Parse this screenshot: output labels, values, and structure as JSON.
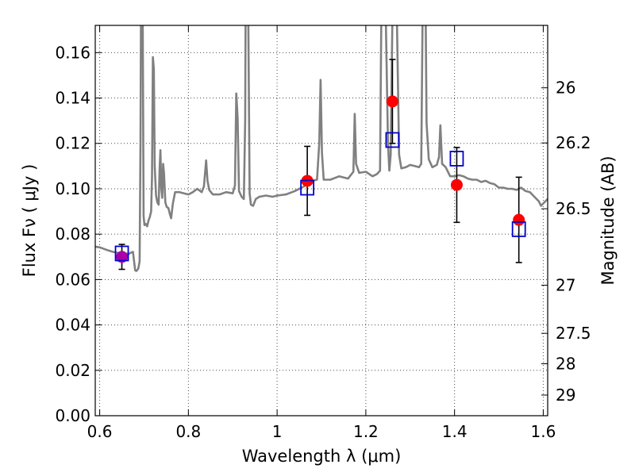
{
  "chart_data": {
    "type": "scatter",
    "xlabel": "Wavelength  λ (μm)",
    "ylabel": "Flux  Fν  ( μJy )",
    "ylabel_right": "Magnitude (AB)",
    "xlim": [
      0.59,
      1.61
    ],
    "ylim": [
      0.0,
      0.172
    ],
    "grid": true,
    "colors": {
      "spectrum": "#808080",
      "observed": "#ff0000",
      "model": "#0000cc",
      "overlap": "#aa00aa",
      "errorbar": "#000000"
    },
    "x_ticks": [
      {
        "value": 0.6,
        "label": "0.6"
      },
      {
        "value": 0.8,
        "label": "0.8"
      },
      {
        "value": 1.0,
        "label": "1"
      },
      {
        "value": 1.2,
        "label": "1.2"
      },
      {
        "value": 1.4,
        "label": "1.4"
      },
      {
        "value": 1.6,
        "label": "1.6"
      }
    ],
    "y_ticks": [
      {
        "value": 0.0,
        "label": "0.00"
      },
      {
        "value": 0.02,
        "label": "0.02"
      },
      {
        "value": 0.04,
        "label": "0.04"
      },
      {
        "value": 0.06,
        "label": "0.06"
      },
      {
        "value": 0.08,
        "label": "0.08"
      },
      {
        "value": 0.1,
        "label": "0.10"
      },
      {
        "value": 0.12,
        "label": "0.12"
      },
      {
        "value": 0.14,
        "label": "0.14"
      },
      {
        "value": 0.16,
        "label": "0.16"
      }
    ],
    "magnitude_ticks": [
      {
        "flux": 0.1445,
        "label": "26"
      },
      {
        "flux": 0.1202,
        "label": "26.2"
      },
      {
        "flux": 0.0912,
        "label": "26.5"
      },
      {
        "flux": 0.0575,
        "label": "27"
      },
      {
        "flux": 0.0363,
        "label": "27.5"
      },
      {
        "flux": 0.0229,
        "label": "28"
      },
      {
        "flux": 0.0091,
        "label": "29"
      }
    ],
    "series": [
      {
        "kind": "observed",
        "points": [
          {
            "x": 0.65,
            "y": 0.07,
            "err": 0.0055
          },
          {
            "x": 1.068,
            "y": 0.1035,
            "err": 0.0152
          },
          {
            "x": 1.26,
            "y": 0.1385,
            "err": 0.0185
          },
          {
            "x": 1.405,
            "y": 0.1017,
            "err": 0.0165
          },
          {
            "x": 1.545,
            "y": 0.0863,
            "err": 0.0188
          }
        ]
      },
      {
        "kind": "model",
        "points": [
          {
            "x": 0.65,
            "y": 0.0715
          },
          {
            "x": 1.068,
            "y": 0.1005
          },
          {
            "x": 1.26,
            "y": 0.1215
          },
          {
            "x": 1.405,
            "y": 0.1133
          },
          {
            "x": 1.545,
            "y": 0.0822
          }
        ]
      }
    ],
    "spectrum": [
      [
        0.59,
        0.0745
      ],
      [
        0.6,
        0.0742
      ],
      [
        0.61,
        0.0735
      ],
      [
        0.62,
        0.0728
      ],
      [
        0.63,
        0.0722
      ],
      [
        0.64,
        0.0718
      ],
      [
        0.645,
        0.0705
      ],
      [
        0.65,
        0.0702
      ],
      [
        0.655,
        0.0708
      ],
      [
        0.66,
        0.0715
      ],
      [
        0.665,
        0.0712
      ],
      [
        0.67,
        0.0718
      ],
      [
        0.675,
        0.0722
      ],
      [
        0.68,
        0.064
      ],
      [
        0.683,
        0.0638
      ],
      [
        0.687,
        0.0648
      ],
      [
        0.69,
        0.068
      ],
      [
        0.692,
        0.12
      ],
      [
        0.693,
        0.176
      ],
      [
        0.697,
        0.176
      ],
      [
        0.699,
        0.088
      ],
      [
        0.701,
        0.084
      ],
      [
        0.704,
        0.0845
      ],
      [
        0.707,
        0.0835
      ],
      [
        0.71,
        0.086
      ],
      [
        0.713,
        0.0875
      ],
      [
        0.716,
        0.09
      ],
      [
        0.718,
        0.105
      ],
      [
        0.72,
        0.158
      ],
      [
        0.722,
        0.153
      ],
      [
        0.724,
        0.11
      ],
      [
        0.727,
        0.097
      ],
      [
        0.73,
        0.094
      ],
      [
        0.733,
        0.093
      ],
      [
        0.735,
        0.108
      ],
      [
        0.737,
        0.117
      ],
      [
        0.739,
        0.1
      ],
      [
        0.741,
        0.096
      ],
      [
        0.743,
        0.111
      ],
      [
        0.745,
        0.107
      ],
      [
        0.748,
        0.094
      ],
      [
        0.751,
        0.092
      ],
      [
        0.755,
        0.0915
      ],
      [
        0.758,
        0.089
      ],
      [
        0.761,
        0.087
      ],
      [
        0.765,
        0.0935
      ],
      [
        0.77,
        0.0985
      ],
      [
        0.78,
        0.0985
      ],
      [
        0.79,
        0.098
      ],
      [
        0.8,
        0.0975
      ],
      [
        0.81,
        0.0985
      ],
      [
        0.82,
        0.1
      ],
      [
        0.83,
        0.0985
      ],
      [
        0.835,
        0.101
      ],
      [
        0.84,
        0.1125
      ],
      [
        0.843,
        0.1035
      ],
      [
        0.847,
        0.0995
      ],
      [
        0.855,
        0.0975
      ],
      [
        0.87,
        0.0975
      ],
      [
        0.885,
        0.0985
      ],
      [
        0.9,
        0.098
      ],
      [
        0.905,
        0.1015
      ],
      [
        0.908,
        0.142
      ],
      [
        0.911,
        0.131
      ],
      [
        0.914,
        0.099
      ],
      [
        0.92,
        0.0965
      ],
      [
        0.925,
        0.0955
      ],
      [
        0.928,
        0.13
      ],
      [
        0.929,
        0.176
      ],
      [
        0.935,
        0.176
      ],
      [
        0.938,
        0.098
      ],
      [
        0.941,
        0.093
      ],
      [
        0.946,
        0.0925
      ],
      [
        0.952,
        0.0955
      ],
      [
        0.96,
        0.0965
      ],
      [
        0.975,
        0.097
      ],
      [
        0.99,
        0.0965
      ],
      [
        1.0,
        0.097
      ],
      [
        1.02,
        0.0975
      ],
      [
        1.04,
        0.099
      ],
      [
        1.06,
        0.101
      ],
      [
        1.08,
        0.1035
      ],
      [
        1.09,
        0.104
      ],
      [
        1.095,
        0.12
      ],
      [
        1.098,
        0.148
      ],
      [
        1.101,
        0.116
      ],
      [
        1.105,
        0.104
      ],
      [
        1.12,
        0.104
      ],
      [
        1.14,
        0.1055
      ],
      [
        1.16,
        0.1045
      ],
      [
        1.172,
        0.1075
      ],
      [
        1.175,
        0.133
      ],
      [
        1.178,
        0.111
      ],
      [
        1.185,
        0.107
      ],
      [
        1.2,
        0.1075
      ],
      [
        1.215,
        0.1055
      ],
      [
        1.225,
        0.1065
      ],
      [
        1.232,
        0.108
      ],
      [
        1.235,
        0.176
      ],
      [
        1.245,
        0.176
      ],
      [
        1.25,
        0.12
      ],
      [
        1.253,
        0.108
      ],
      [
        1.256,
        0.115
      ],
      [
        1.26,
        0.176
      ],
      [
        1.27,
        0.176
      ],
      [
        1.275,
        0.115
      ],
      [
        1.28,
        0.109
      ],
      [
        1.29,
        0.1095
      ],
      [
        1.3,
        0.1105
      ],
      [
        1.31,
        0.11
      ],
      [
        1.32,
        0.1095
      ],
      [
        1.325,
        0.111
      ],
      [
        1.328,
        0.176
      ],
      [
        1.335,
        0.176
      ],
      [
        1.337,
        0.129
      ],
      [
        1.342,
        0.113
      ],
      [
        1.35,
        0.1095
      ],
      [
        1.36,
        0.1105
      ],
      [
        1.365,
        0.114
      ],
      [
        1.368,
        0.128
      ],
      [
        1.372,
        0.111
      ],
      [
        1.38,
        0.1095
      ],
      [
        1.39,
        0.1055
      ],
      [
        1.4,
        0.1055
      ],
      [
        1.41,
        0.106
      ],
      [
        1.42,
        0.1055
      ],
      [
        1.43,
        0.1045
      ],
      [
        1.44,
        0.104
      ],
      [
        1.45,
        0.104
      ],
      [
        1.46,
        0.103
      ],
      [
        1.47,
        0.1035
      ],
      [
        1.48,
        0.1025
      ],
      [
        1.49,
        0.102
      ],
      [
        1.5,
        0.1005
      ],
      [
        1.51,
        0.1005
      ],
      [
        1.52,
        0.1
      ],
      [
        1.53,
        0.1
      ],
      [
        1.54,
        0.0995
      ],
      [
        1.55,
        0.1005
      ],
      [
        1.56,
        0.099
      ],
      [
        1.57,
        0.0985
      ],
      [
        1.58,
        0.0965
      ],
      [
        1.59,
        0.0945
      ],
      [
        1.595,
        0.0925
      ],
      [
        1.6,
        0.0935
      ],
      [
        1.61,
        0.0955
      ]
    ]
  }
}
